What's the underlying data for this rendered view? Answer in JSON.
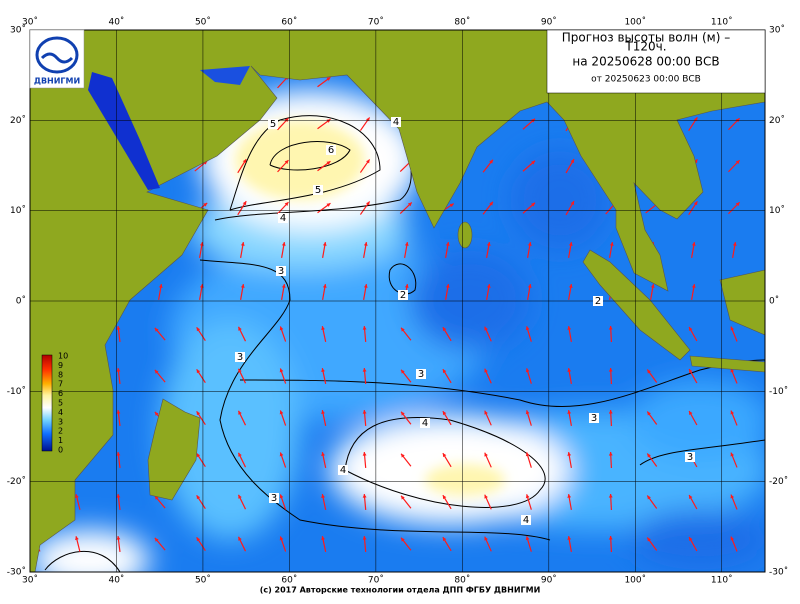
{
  "header": {
    "title_line1": "Прогноз высоты волн (м) –",
    "title_line2": "T120ч.",
    "valid_time": "на 20250628 00:00 ВСВ",
    "issued": "от 20250623 00:00 ВСВ"
  },
  "logo": {
    "text": "ДВНИГМИ"
  },
  "map": {
    "lon_range": [
      30,
      115
    ],
    "lat_range": [
      -30,
      30
    ],
    "lon_ticks": [
      {
        "value": 30,
        "label": "30˚"
      },
      {
        "value": 40,
        "label": "40˚"
      },
      {
        "value": 50,
        "label": "50˚"
      },
      {
        "value": 60,
        "label": "60˚"
      },
      {
        "value": 70,
        "label": "70˚"
      },
      {
        "value": 80,
        "label": "80˚"
      },
      {
        "value": 90,
        "label": "90˚"
      },
      {
        "value": 100,
        "label": "100˚"
      },
      {
        "value": 110,
        "label": "110˚"
      }
    ],
    "lat_ticks": [
      {
        "value": 30,
        "label": "30˚"
      },
      {
        "value": 20,
        "label": "20˚"
      },
      {
        "value": 10,
        "label": "10˚"
      },
      {
        "value": 0,
        "label": "0˚"
      },
      {
        "value": -10,
        "label": "-10˚"
      },
      {
        "value": -20,
        "label": "-20˚"
      },
      {
        "value": -30,
        "label": "-30˚"
      }
    ],
    "contour_labels": [
      "5",
      "6",
      "5",
      "4",
      "4",
      "3",
      "2",
      "3",
      "3",
      "2",
      "3",
      "4",
      "4",
      "4",
      "3",
      "3"
    ]
  },
  "colorbar": {
    "labels": [
      "10",
      "9",
      "8",
      "7",
      "6",
      "5",
      "4",
      "3",
      "2",
      "1",
      "0"
    ]
  },
  "footer": "(c) 2017 Авторские технологии отдела ДПП ФГБУ ДВНИГМИ"
}
